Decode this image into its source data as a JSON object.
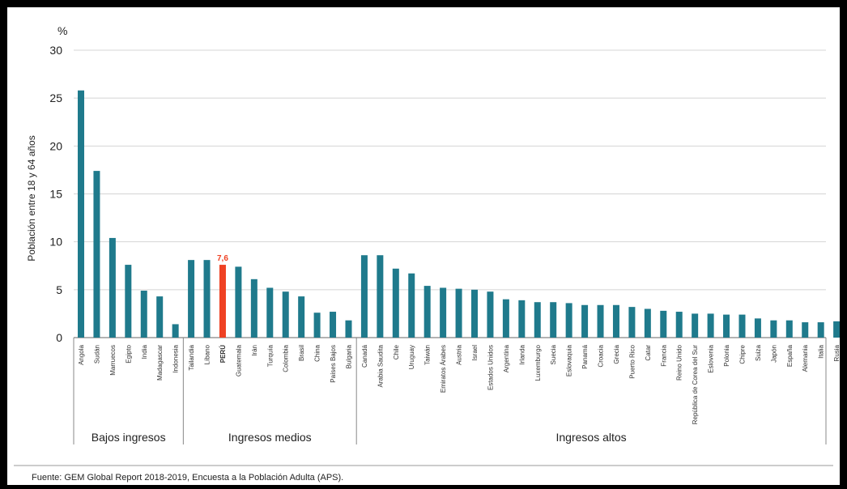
{
  "chart_data": {
    "type": "bar",
    "unit": "%",
    "ylabel": "Población entre 18 y 64 años",
    "ylim": [
      0,
      30
    ],
    "yticks": [
      0,
      5,
      10,
      15,
      20,
      25,
      30
    ],
    "grid": true,
    "bar_color": "#1f7a8c",
    "highlight_color": "#ef4123",
    "highlight_category": "PERÚ",
    "highlight_label": "7,6",
    "groups": [
      {
        "name": "Bajos ingresos",
        "categories": [
          "Angola",
          "Sudán",
          "Marruecos",
          "Egipto",
          "India",
          "Madagascar",
          "Indonesia"
        ],
        "values": [
          25.8,
          17.4,
          10.4,
          7.6,
          4.9,
          4.3,
          1.4
        ]
      },
      {
        "name": "Ingresos medios",
        "categories": [
          "Tailandia",
          "Líbano",
          "PERÚ",
          "Guatemala",
          "Irán",
          "Turquía",
          "Colombia",
          "Brasil",
          "China",
          "Países Bajos",
          "Bulgaria"
        ],
        "values": [
          8.1,
          8.1,
          7.6,
          7.4,
          6.1,
          5.2,
          4.8,
          4.3,
          2.6,
          2.7,
          1.8
        ]
      },
      {
        "name": "Ingresos altos",
        "categories": [
          "Canadá",
          "Arabia Saudita",
          "Chile",
          "Uruguay",
          "Taiwán",
          "Emiratos Árabes",
          "Austria",
          "Israel",
          "Estados Unidos",
          "Argentina",
          "Irlanda",
          "Luxemburgo",
          "Suecia",
          "Eslovaquia",
          "Panamá",
          "Croacia",
          "Grecia",
          "Puerto Rico",
          "Catar",
          "Francia",
          "Reino Unido",
          "República de Corea del Sur",
          "Eslovenia",
          "Polonia",
          "Chipre",
          "Suiza",
          "Japón",
          "España",
          "Alemania",
          "Italia",
          "Rusia"
        ],
        "values": [
          8.6,
          8.6,
          7.2,
          6.7,
          5.4,
          5.2,
          5.1,
          5.0,
          4.8,
          4.0,
          3.9,
          3.7,
          3.7,
          3.6,
          3.4,
          3.4,
          3.4,
          3.2,
          3.0,
          2.8,
          2.7,
          2.5,
          2.5,
          2.4,
          2.4,
          2.0,
          1.8,
          1.8,
          1.6,
          1.6,
          1.7
        ]
      }
    ]
  },
  "source": "Fuente: GEM Global Report 2018-2019, Encuesta a la Población Adulta (APS)."
}
